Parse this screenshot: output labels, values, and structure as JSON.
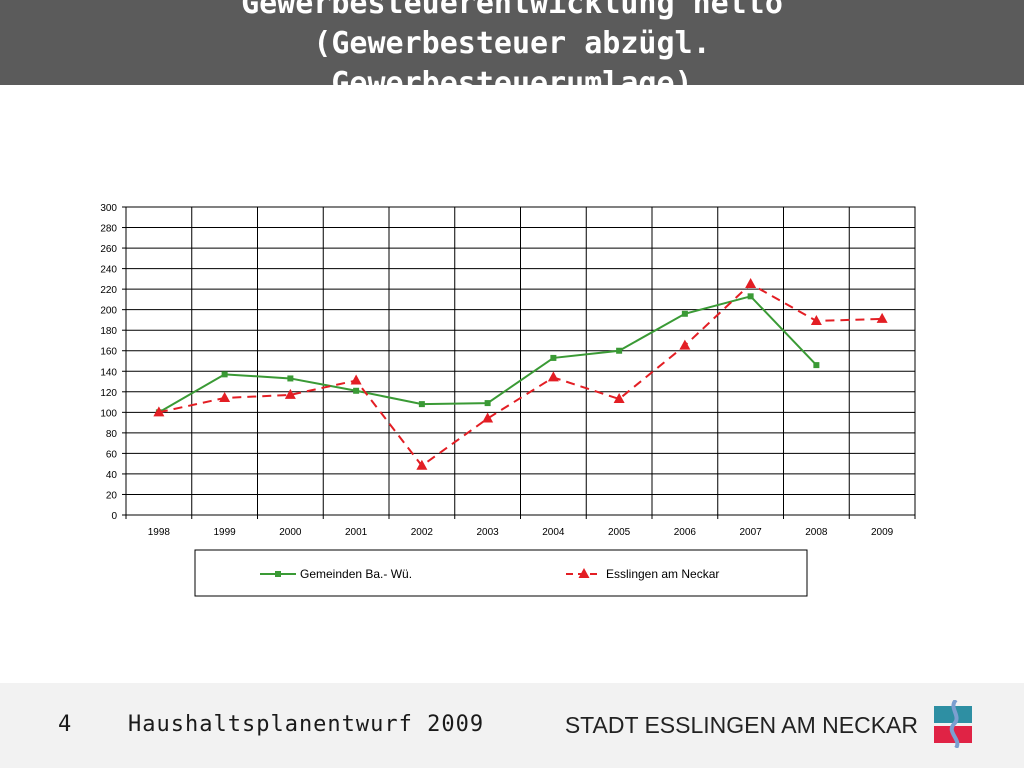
{
  "slide": {
    "title_lines": [
      "Gewerbesteuerentwicklung netto",
      "(Gewerbesteuer abzügl.",
      "Gewerbesteuerumlage)"
    ],
    "page_number": "4",
    "footer_title": "Haushaltsplanentwurf 2009",
    "organization": "STADT ESSLINGEN AM NECKAR"
  },
  "colors": {
    "title_bar": "#5b5b5b",
    "series_green": "#3a9a35",
    "series_red": "#e31e24",
    "logo_teal": "#2e8fa3",
    "logo_red": "#e02345",
    "logo_blue": "#7b9fd0"
  },
  "chart_data": {
    "type": "line",
    "title": "",
    "xlabel": "",
    "ylabel": "",
    "categories": [
      "1998",
      "1999",
      "2000",
      "2001",
      "2002",
      "2003",
      "2004",
      "2005",
      "2006",
      "2007",
      "2008",
      "2009"
    ],
    "ylim": [
      0,
      300
    ],
    "y_ticks": [
      0,
      20,
      40,
      60,
      80,
      100,
      120,
      140,
      160,
      180,
      200,
      220,
      240,
      260,
      280,
      300
    ],
    "grid": true,
    "legend_position": "bottom",
    "series": [
      {
        "name": "Gemeinden Ba.- Wü.",
        "color": "#3a9a35",
        "marker": "square",
        "dash": "solid",
        "values": [
          100,
          137,
          133,
          121,
          108,
          109,
          153,
          160,
          196,
          213,
          146,
          null
        ]
      },
      {
        "name": "Esslingen am Neckar",
        "color": "#e31e24",
        "marker": "triangle",
        "dash": "dashed",
        "values": [
          100,
          114,
          117,
          131,
          48,
          94,
          134,
          113,
          165,
          225,
          189,
          191
        ]
      }
    ]
  }
}
